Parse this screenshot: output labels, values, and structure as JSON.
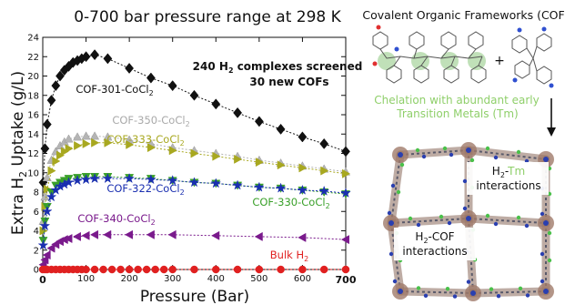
{
  "chart_data": {
    "type": "scatter",
    "title": "0-700 bar pressure range at 298 K",
    "xlabel": "Pressure (Bar)",
    "ylabel": "Extra H2 Uptake (g/L)",
    "xlim": [
      0,
      700
    ],
    "ylim": [
      0,
      24
    ],
    "x_ticks": [
      "0",
      "100",
      "200",
      "300",
      "400",
      "500",
      "600",
      "700"
    ],
    "y_ticks": [
      "0",
      "2",
      "4",
      "6",
      "8",
      "10",
      "12",
      "14",
      "16",
      "18",
      "20",
      "22",
      "24"
    ],
    "grid": false,
    "annotation": [
      "240 H2 complexes screened",
      "30 new COFs"
    ],
    "series": [
      {
        "name": "COF-301-CoCl2",
        "color": "#111111",
        "marker": "diamond",
        "x": [
          1,
          5,
          10,
          20,
          30,
          40,
          50,
          60,
          70,
          80,
          90,
          100,
          120,
          150,
          200,
          250,
          300,
          350,
          400,
          450,
          500,
          550,
          600,
          650,
          700
        ],
        "y": [
          9,
          12.5,
          15,
          17.5,
          19,
          20,
          20.6,
          21,
          21.4,
          21.6,
          21.8,
          22,
          22.2,
          21.8,
          20.8,
          19.8,
          19,
          18,
          17.1,
          16.2,
          15.3,
          14.5,
          13.7,
          13,
          12.2
        ]
      },
      {
        "name": "COF-350-CoCl2",
        "color": "#b5b5b5",
        "marker": "triangle-up",
        "x": [
          1,
          5,
          10,
          20,
          30,
          40,
          50,
          60,
          80,
          100,
          120,
          150,
          200,
          250,
          300,
          350,
          400,
          450,
          500,
          550,
          600,
          650,
          700
        ],
        "y": [
          5,
          7.5,
          9.5,
          11.3,
          12.2,
          12.8,
          13.2,
          13.5,
          13.7,
          13.8,
          13.8,
          13.7,
          13.4,
          13,
          12.6,
          12.3,
          12,
          11.7,
          11.3,
          11,
          10.7,
          10.4,
          10.1
        ]
      },
      {
        "name": "COF-333-CoCl2",
        "color": "#a8a820",
        "marker": "triangle-right",
        "x": [
          1,
          5,
          10,
          20,
          30,
          40,
          50,
          60,
          80,
          100,
          120,
          150,
          200,
          250,
          300,
          350,
          400,
          450,
          500,
          550,
          600,
          650,
          700
        ],
        "y": [
          4,
          6.5,
          8.3,
          10.2,
          11.2,
          11.8,
          12.2,
          12.5,
          12.8,
          13,
          13.1,
          13.1,
          12.9,
          12.6,
          12.3,
          12,
          11.7,
          11.4,
          11.1,
          10.8,
          10.5,
          10.2,
          9.9
        ]
      },
      {
        "name": "COF-330-CoCl2",
        "color": "#3aa02a",
        "marker": "triangle-down",
        "x": [
          1,
          5,
          10,
          20,
          30,
          40,
          50,
          60,
          80,
          100,
          120,
          150,
          200,
          250,
          300,
          350,
          400,
          450,
          500,
          550,
          600,
          650,
          700
        ],
        "y": [
          3,
          5,
          6.5,
          8,
          8.7,
          9,
          9.2,
          9.4,
          9.5,
          9.6,
          9.6,
          9.6,
          9.5,
          9.4,
          9.2,
          9,
          8.9,
          8.7,
          8.5,
          8.4,
          8.2,
          8,
          7.8
        ]
      },
      {
        "name": "COF-322-CoCl2",
        "color": "#1a2fb0",
        "marker": "star",
        "x": [
          1,
          5,
          10,
          20,
          30,
          40,
          50,
          60,
          80,
          100,
          120,
          150,
          200,
          250,
          300,
          350,
          400,
          450,
          500,
          550,
          600,
          650,
          700
        ],
        "y": [
          2.5,
          4.5,
          6,
          7.5,
          8.2,
          8.6,
          8.8,
          9,
          9.2,
          9.3,
          9.4,
          9.4,
          9.4,
          9.3,
          9.2,
          9,
          8.9,
          8.7,
          8.5,
          8.4,
          8.2,
          8.1,
          7.9
        ]
      },
      {
        "name": "COF-340-CoCl2",
        "color": "#7a1a8c",
        "marker": "triangle-left",
        "x": [
          1,
          5,
          10,
          20,
          30,
          40,
          50,
          60,
          80,
          100,
          120,
          150,
          200,
          250,
          300,
          400,
          500,
          600,
          700
        ],
        "y": [
          0.5,
          1,
          1.5,
          2.2,
          2.6,
          2.9,
          3.1,
          3.2,
          3.4,
          3.5,
          3.6,
          3.6,
          3.6,
          3.6,
          3.6,
          3.5,
          3.4,
          3.3,
          3.1
        ]
      },
      {
        "name": "Bulk H2",
        "color": "#e02020",
        "marker": "circle",
        "x": [
          0,
          5,
          10,
          20,
          30,
          40,
          50,
          60,
          70,
          80,
          90,
          100,
          120,
          140,
          160,
          180,
          200,
          220,
          240,
          260,
          280,
          300,
          350,
          400,
          450,
          500,
          550,
          600,
          650,
          700
        ],
        "y": [
          0,
          0,
          0,
          0,
          0,
          0,
          0,
          0,
          0,
          0,
          0,
          0,
          0,
          0,
          0,
          0,
          0,
          0,
          0,
          0,
          0,
          0,
          0,
          0,
          0,
          0,
          0,
          0,
          0,
          0
        ]
      }
    ]
  },
  "scheme": {
    "title": "Covalent Organic Frameworks (COF)",
    "plus": "+",
    "chelation_line1": "Chelation with abundant early",
    "chelation_line2": "Transition Metals (Tm)",
    "label_tm": "H2-Tm",
    "label_tm2": "interactions",
    "label_cof": "H2-COF",
    "label_cof2": "interactions"
  }
}
